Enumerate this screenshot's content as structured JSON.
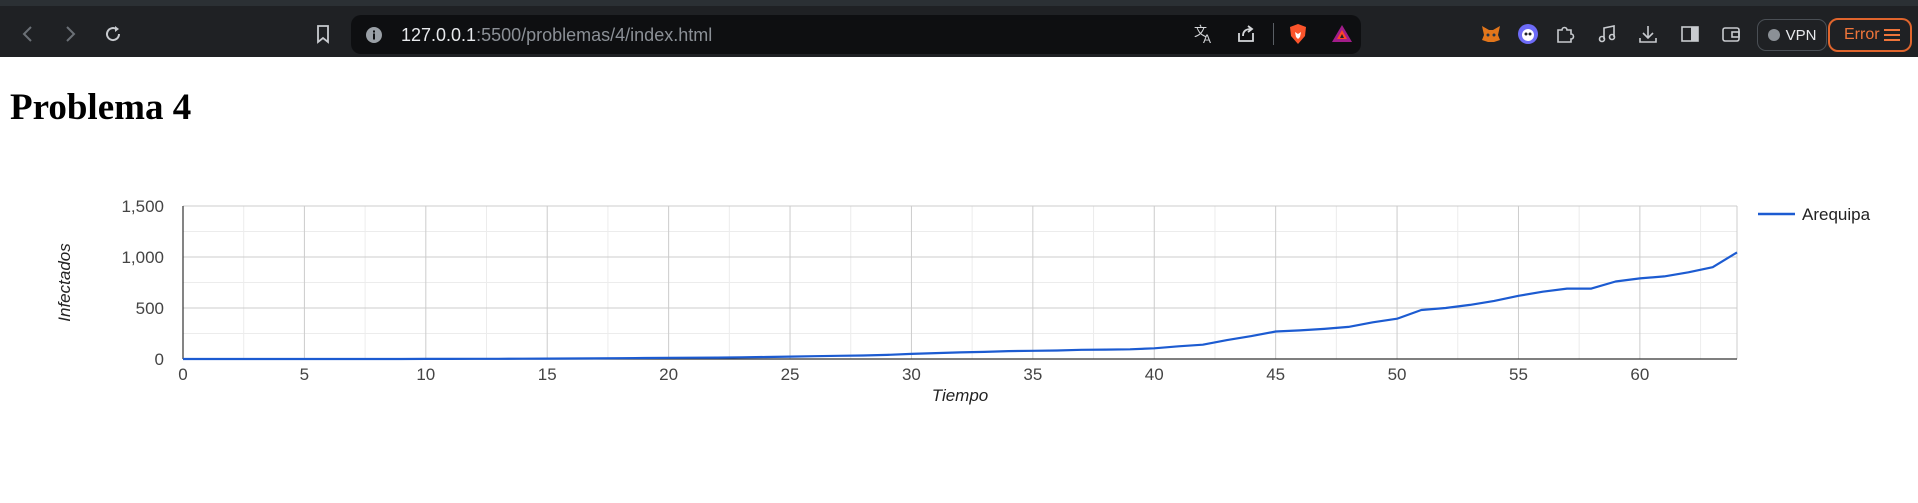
{
  "browser": {
    "url_host": "127.0.0.1",
    "url_rest": ":5500/problemas/4/index.html",
    "vpn_label": "VPN",
    "error_label": "Error"
  },
  "page": {
    "heading": "Problema 4"
  },
  "chart_data": {
    "type": "line",
    "title": "",
    "xlabel": "Tiempo",
    "ylabel": "Infectados",
    "xlim": [
      0,
      64
    ],
    "ylim": [
      0,
      1500
    ],
    "xticks": [
      0,
      5,
      10,
      15,
      20,
      25,
      30,
      35,
      40,
      45,
      50,
      55,
      60
    ],
    "yticks": [
      0,
      500,
      1000,
      1500
    ],
    "ytick_labels": [
      "0",
      "500",
      "1,000",
      "1,500"
    ],
    "grid": true,
    "legend": "right",
    "series": [
      {
        "name": "Arequipa",
        "color": "#1c5bd1",
        "x": [
          0,
          1,
          2,
          3,
          4,
          5,
          6,
          7,
          8,
          9,
          10,
          11,
          12,
          13,
          14,
          15,
          16,
          17,
          18,
          19,
          20,
          21,
          22,
          23,
          24,
          25,
          26,
          27,
          28,
          29,
          30,
          31,
          32,
          33,
          34,
          35,
          36,
          37,
          38,
          39,
          40,
          41,
          42,
          43,
          44,
          45,
          46,
          47,
          48,
          49,
          50,
          51,
          52,
          53,
          54,
          55,
          56,
          57,
          58,
          59,
          60,
          61,
          62,
          63,
          64
        ],
        "values": [
          0,
          0,
          0,
          0,
          0,
          0,
          0,
          0,
          0,
          0,
          1,
          1,
          2,
          2,
          3,
          4,
          5,
          6,
          8,
          10,
          12,
          13,
          14,
          17,
          20,
          24,
          27,
          31,
          34,
          40,
          50,
          58,
          65,
          70,
          77,
          80,
          83,
          90,
          92,
          95,
          105,
          125,
          140,
          185,
          225,
          270,
          280,
          295,
          315,
          360,
          395,
          480,
          500,
          530,
          570,
          620,
          660,
          690,
          690,
          760,
          790,
          810,
          850,
          900,
          1045
        ]
      }
    ]
  },
  "icons": [
    "back-icon",
    "forward-icon",
    "reload-icon",
    "bookmark-icon",
    "site-info-icon",
    "translate-icon",
    "share-icon",
    "brave-shields-icon",
    "brave-rewards-icon",
    "metamask-icon",
    "brave-wallet-ext-icon",
    "extensions-icon",
    "media-icon",
    "download-icon",
    "sidebar-icon",
    "wallet-icon",
    "menu-icon"
  ]
}
